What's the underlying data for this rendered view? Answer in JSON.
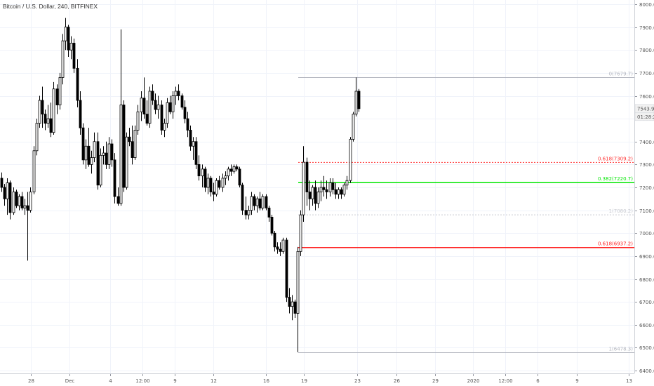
{
  "chart_data": {
    "type": "candlestick",
    "title": "Bitcoin / U.S. Dollar, 240, BITFINEX",
    "ylim": [
      6400,
      8000
    ],
    "y_ticks": [
      "8000.0",
      "7900.0",
      "7800.0",
      "7700.0",
      "7600.0",
      "7500.0",
      "7400.0",
      "7300.0",
      "7200.0",
      "7100.0",
      "7000.0",
      "6900.0",
      "6800.0",
      "6700.0",
      "6600.0",
      "6500.0",
      "6400.0"
    ],
    "x_ticks": [
      "28",
      "Dec",
      "4",
      "12:00",
      "9",
      "12",
      "16",
      "19",
      "23",
      "26",
      "29",
      "2020",
      "12:00",
      "6",
      "9",
      "13"
    ],
    "grid": true,
    "last_price": "7543.9",
    "countdown": "01:28:26",
    "colors": {
      "up": "#ffffff",
      "down": "#000000",
      "wick": "#000000"
    },
    "fib_levels": [
      {
        "label": "0(7679.7)",
        "value": 7679.7,
        "color": "#b2b5be",
        "style": "solid",
        "width": 1
      },
      {
        "label": "0.618(7309.2)",
        "value": 7309.2,
        "color": "#ff3333",
        "style": "dotted",
        "width": 1
      },
      {
        "label": "0.382(7220.7)",
        "value": 7220.7,
        "color": "#00e600",
        "style": "solid",
        "width": 1.6
      },
      {
        "label": "1(7080.2)",
        "value": 7080.2,
        "color": "#c8cad0",
        "style": "dotted",
        "width": 1
      },
      {
        "label": "0.618(6937.2)",
        "value": 6937.2,
        "color": "#ff2222",
        "style": "solid",
        "width": 1.6
      },
      {
        "label": "1(6478.3)",
        "value": 6478.3,
        "color": "#b2b5be",
        "style": "solid",
        "width": 1
      }
    ],
    "candles": [
      [
        7240,
        7265,
        7180,
        7200
      ],
      [
        7200,
        7215,
        7120,
        7150
      ],
      [
        7150,
        7240,
        7080,
        7220
      ],
      [
        7220,
        7230,
        7060,
        7090
      ],
      [
        7090,
        7200,
        7080,
        7180
      ],
      [
        7180,
        7190,
        7110,
        7120
      ],
      [
        7120,
        7170,
        7100,
        7160
      ],
      [
        7160,
        7180,
        7100,
        7110
      ],
      [
        7110,
        7150,
        7080,
        7120
      ],
      [
        7120,
        7180,
        6880,
        7100
      ],
      [
        7100,
        7200,
        7090,
        7180
      ],
      [
        7180,
        7380,
        7170,
        7360
      ],
      [
        7360,
        7500,
        7340,
        7480
      ],
      [
        7480,
        7600,
        7460,
        7580
      ],
      [
        7580,
        7640,
        7460,
        7520
      ],
      [
        7520,
        7540,
        7450,
        7480
      ],
      [
        7480,
        7560,
        7460,
        7500
      ],
      [
        7500,
        7570,
        7420,
        7440
      ],
      [
        7440,
        7660,
        7430,
        7630
      ],
      [
        7630,
        7650,
        7520,
        7560
      ],
      [
        7560,
        7700,
        7540,
        7680
      ],
      [
        7680,
        7870,
        7650,
        7840
      ],
      [
        7840,
        7940,
        7800,
        7900
      ],
      [
        7900,
        7910,
        7770,
        7800
      ],
      [
        7800,
        7860,
        7760,
        7830
      ],
      [
        7830,
        7850,
        7700,
        7720
      ],
      [
        7720,
        7760,
        7550,
        7580
      ],
      [
        7580,
        7620,
        7430,
        7460
      ],
      [
        7460,
        7480,
        7300,
        7320
      ],
      [
        7320,
        7410,
        7280,
        7380
      ],
      [
        7380,
        7460,
        7290,
        7300
      ],
      [
        7300,
        7360,
        7260,
        7330
      ],
      [
        7330,
        7440,
        7310,
        7400
      ],
      [
        7400,
        7440,
        7190,
        7210
      ],
      [
        7210,
        7370,
        7200,
        7340
      ],
      [
        7340,
        7380,
        7300,
        7350
      ],
      [
        7350,
        7400,
        7280,
        7300
      ],
      [
        7300,
        7420,
        7280,
        7390
      ],
      [
        7390,
        7410,
        7290,
        7320
      ],
      [
        7320,
        7350,
        7130,
        7160
      ],
      [
        7160,
        7200,
        7120,
        7130
      ],
      [
        7130,
        7890,
        7120,
        7560
      ],
      [
        7560,
        7580,
        7180,
        7200
      ],
      [
        7200,
        7440,
        7190,
        7420
      ],
      [
        7420,
        7460,
        7380,
        7400
      ],
      [
        7400,
        7470,
        7300,
        7330
      ],
      [
        7330,
        7470,
        7320,
        7450
      ],
      [
        7450,
        7560,
        7430,
        7530
      ],
      [
        7530,
        7620,
        7490,
        7590
      ],
      [
        7590,
        7680,
        7500,
        7520
      ],
      [
        7520,
        7580,
        7470,
        7480
      ],
      [
        7480,
        7640,
        7460,
        7620
      ],
      [
        7620,
        7650,
        7560,
        7580
      ],
      [
        7580,
        7610,
        7520,
        7540
      ],
      [
        7540,
        7600,
        7500,
        7560
      ],
      [
        7560,
        7580,
        7430,
        7450
      ],
      [
        7450,
        7500,
        7420,
        7480
      ],
      [
        7480,
        7590,
        7460,
        7570
      ],
      [
        7570,
        7600,
        7520,
        7530
      ],
      [
        7530,
        7620,
        7500,
        7600
      ],
      [
        7600,
        7640,
        7560,
        7620
      ],
      [
        7620,
        7650,
        7580,
        7600
      ],
      [
        7600,
        7610,
        7540,
        7550
      ],
      [
        7550,
        7580,
        7480,
        7500
      ],
      [
        7500,
        7530,
        7420,
        7450
      ],
      [
        7450,
        7470,
        7360,
        7380
      ],
      [
        7380,
        7420,
        7320,
        7400
      ],
      [
        7400,
        7420,
        7280,
        7300
      ],
      [
        7300,
        7340,
        7230,
        7250
      ],
      [
        7250,
        7300,
        7200,
        7280
      ],
      [
        7280,
        7290,
        7180,
        7200
      ],
      [
        7200,
        7260,
        7170,
        7240
      ],
      [
        7240,
        7250,
        7160,
        7180
      ],
      [
        7180,
        7220,
        7140,
        7170
      ],
      [
        7170,
        7240,
        7160,
        7230
      ],
      [
        7230,
        7250,
        7190,
        7200
      ],
      [
        7200,
        7260,
        7180,
        7240
      ],
      [
        7240,
        7270,
        7210,
        7250
      ],
      [
        7250,
        7290,
        7230,
        7280
      ],
      [
        7280,
        7300,
        7250,
        7270
      ],
      [
        7270,
        7300,
        7260,
        7290
      ],
      [
        7290,
        7300,
        7270,
        7280
      ],
      [
        7280,
        7290,
        7200,
        7210
      ],
      [
        7210,
        7220,
        7080,
        7100
      ],
      [
        7100,
        7160,
        7060,
        7080
      ],
      [
        7080,
        7120,
        7060,
        7100
      ],
      [
        7100,
        7180,
        7080,
        7160
      ],
      [
        7160,
        7170,
        7100,
        7120
      ],
      [
        7120,
        7160,
        7090,
        7150
      ],
      [
        7150,
        7180,
        7100,
        7110
      ],
      [
        7110,
        7170,
        7100,
        7160
      ],
      [
        7160,
        7170,
        7100,
        7110
      ],
      [
        7110,
        7120,
        7050,
        7070
      ],
      [
        7070,
        7080,
        6990,
        7000
      ],
      [
        7000,
        7010,
        6920,
        6940
      ],
      [
        6940,
        6960,
        6910,
        6930
      ],
      [
        6930,
        6960,
        6900,
        6920
      ],
      [
        6920,
        6980,
        6910,
        6970
      ],
      [
        6970,
        6980,
        6700,
        6720
      ],
      [
        6720,
        6760,
        6650,
        6680
      ],
      [
        6680,
        6730,
        6620,
        6700
      ],
      [
        6700,
        6710,
        6630,
        6650
      ],
      [
        6650,
        6940,
        6480,
        6920
      ],
      [
        6920,
        7100,
        6900,
        7080
      ],
      [
        7080,
        7380,
        7050,
        7310
      ],
      [
        7310,
        7330,
        7120,
        7180
      ],
      [
        7180,
        7230,
        7100,
        7150
      ],
      [
        7150,
        7210,
        7120,
        7200
      ],
      [
        7200,
        7230,
        7100,
        7130
      ],
      [
        7130,
        7200,
        7110,
        7180
      ],
      [
        7180,
        7230,
        7140,
        7200
      ],
      [
        7200,
        7250,
        7160,
        7190
      ],
      [
        7190,
        7230,
        7150,
        7180
      ],
      [
        7180,
        7240,
        7160,
        7220
      ],
      [
        7220,
        7240,
        7170,
        7190
      ],
      [
        7190,
        7220,
        7150,
        7170
      ],
      [
        7170,
        7200,
        7150,
        7190
      ],
      [
        7190,
        7200,
        7150,
        7170
      ],
      [
        7170,
        7220,
        7160,
        7210
      ],
      [
        7210,
        7250,
        7190,
        7230
      ],
      [
        7230,
        7420,
        7220,
        7410
      ],
      [
        7410,
        7530,
        7400,
        7520
      ],
      [
        7520,
        7680,
        7510,
        7620
      ],
      [
        7620,
        7630,
        7530,
        7543.9
      ]
    ]
  }
}
